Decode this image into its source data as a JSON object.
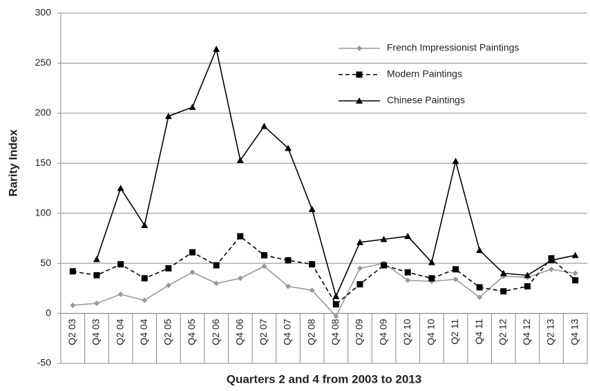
{
  "chart_data": {
    "type": "line",
    "xlabel": "Quarters 2 and 4 from 2003 to 2013",
    "ylabel": "Rarity Index",
    "categories": [
      "Q2 03",
      "Q4 03",
      "Q2 04",
      "Q4 04",
      "Q2 05",
      "Q4 05",
      "Q2 06",
      "Q4 06",
      "Q2 07",
      "Q4 07",
      "Q2 08",
      "Q4 08",
      "Q2 09",
      "Q4 09",
      "Q2 10",
      "Q4 10",
      "Q2 11",
      "Q4 11",
      "Q2 12",
      "Q4 12",
      "Q2 13",
      "Q4 13"
    ],
    "series": [
      {
        "name": "French Impressionist Paintings",
        "color": "#999999",
        "marker": "diamond",
        "dash": "solid",
        "values": [
          8,
          10,
          19,
          13,
          28,
          41,
          30,
          35,
          47,
          27,
          23,
          -3,
          45,
          50,
          33,
          32,
          34,
          16,
          37,
          36,
          44,
          40
        ]
      },
      {
        "name": "Modern Paintings",
        "color": "#000000",
        "marker": "square",
        "dash": "dashed",
        "values": [
          42,
          38,
          49,
          35,
          45,
          61,
          48,
          77,
          58,
          53,
          49,
          9,
          29,
          48,
          41,
          35,
          44,
          26,
          22,
          27,
          55,
          33
        ]
      },
      {
        "name": "Chinese Paintings",
        "color": "#000000",
        "marker": "triangle",
        "dash": "solid",
        "values": [
          null,
          54,
          125,
          88,
          197,
          206,
          264,
          153,
          187,
          165,
          104,
          17,
          71,
          74,
          77,
          51,
          152,
          63,
          40,
          38,
          53,
          58
        ]
      }
    ],
    "ylim": [
      -50,
      300
    ],
    "yticks": [
      -50,
      0,
      50,
      100,
      150,
      200,
      250,
      300
    ],
    "grid": true,
    "legend": "upper right"
  }
}
